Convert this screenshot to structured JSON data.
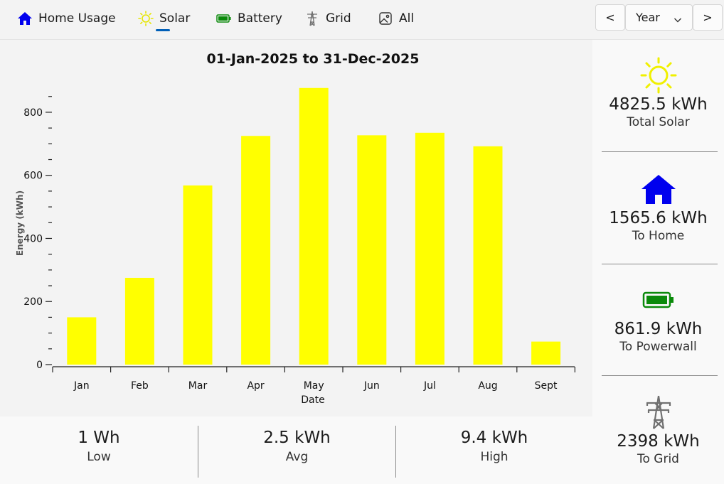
{
  "tabs": [
    {
      "label": "Home Usage",
      "icon": "home-icon"
    },
    {
      "label": "Solar",
      "icon": "sun-icon",
      "selected": true
    },
    {
      "label": "Battery",
      "icon": "battery-icon"
    },
    {
      "label": "Grid",
      "icon": "power-pylon-icon"
    },
    {
      "label": "All",
      "icon": "image-icon"
    }
  ],
  "period": {
    "prev_label": "<",
    "next_label": ">",
    "selected": "Year"
  },
  "colors": {
    "accent": "#005fb8",
    "bar": "#ffff00",
    "home": "#0000ee",
    "battery": "#0a8a0a",
    "grid": "#707070"
  },
  "chart_data": {
    "type": "bar",
    "title": "01-Jan-2025 to 31-Dec-2025",
    "xlabel": "Date",
    "ylabel": "Energy (kWh)",
    "categories": [
      "Jan",
      "Feb",
      "Mar",
      "Apr",
      "May",
      "Jun",
      "Jul",
      "Aug",
      "Sept"
    ],
    "values": [
      150,
      275,
      568,
      725,
      877,
      727,
      735,
      692,
      73
    ],
    "ylim": [
      0,
      890
    ],
    "yticks": [
      0,
      200,
      400,
      600,
      800
    ],
    "bar_color": "#ffff00"
  },
  "stats": [
    {
      "value": "1 Wh",
      "label": "Low"
    },
    {
      "value": "2.5 kWh",
      "label": "Avg"
    },
    {
      "value": "9.4 kWh",
      "label": "High"
    }
  ],
  "summary": [
    {
      "icon": "sun-icon",
      "value": "4825.5 kWh",
      "label": "Total Solar"
    },
    {
      "icon": "home-icon",
      "value": "1565.6 kWh",
      "label": "To Home"
    },
    {
      "icon": "battery-icon",
      "value": "861.9 kWh",
      "label": "To Powerwall"
    },
    {
      "icon": "power-pylon-icon",
      "value": "2398 kWh",
      "label": "To Grid"
    }
  ]
}
